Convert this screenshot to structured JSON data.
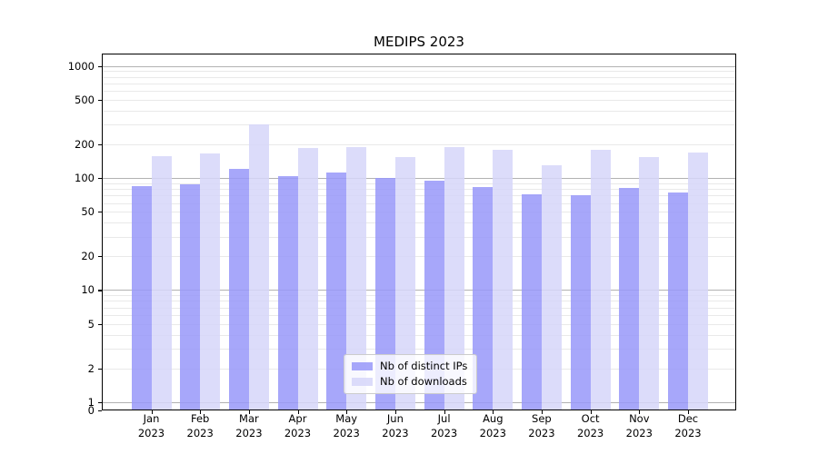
{
  "chart_data": {
    "type": "bar",
    "title": "MEDIPS 2023",
    "categories": [
      "Jan",
      "Feb",
      "Mar",
      "Apr",
      "May",
      "Jun",
      "Jul",
      "Aug",
      "Sep",
      "Oct",
      "Nov",
      "Dec"
    ],
    "category_year": "2023",
    "series": [
      {
        "name": "Nb of distinct IPs",
        "color": "rgba(152,152,249,0.85)",
        "values": [
          85,
          88,
          120,
          105,
          112,
          100,
          94,
          83,
          71,
          70,
          81,
          75
        ]
      },
      {
        "name": "Nb of downloads",
        "color": "rgba(214,214,249,0.85)",
        "values": [
          158,
          167,
          300,
          184,
          189,
          153,
          188,
          180,
          131,
          178,
          153,
          170
        ]
      }
    ],
    "xlabel": "",
    "ylabel": "",
    "yscale": "symlog",
    "ylim": [
      0,
      1300
    ],
    "y_ticks": [
      0,
      1,
      2,
      5,
      10,
      20,
      50,
      100,
      200,
      500,
      1000
    ],
    "grid": true,
    "grid_major_values": [
      1,
      10,
      100,
      1000
    ],
    "legend_position": "lower center inside",
    "colors": {
      "major_grid": "#b2b2b2",
      "minor_grid": "#e9e9e9",
      "axis": "#000000",
      "background": "#ffffff"
    }
  }
}
